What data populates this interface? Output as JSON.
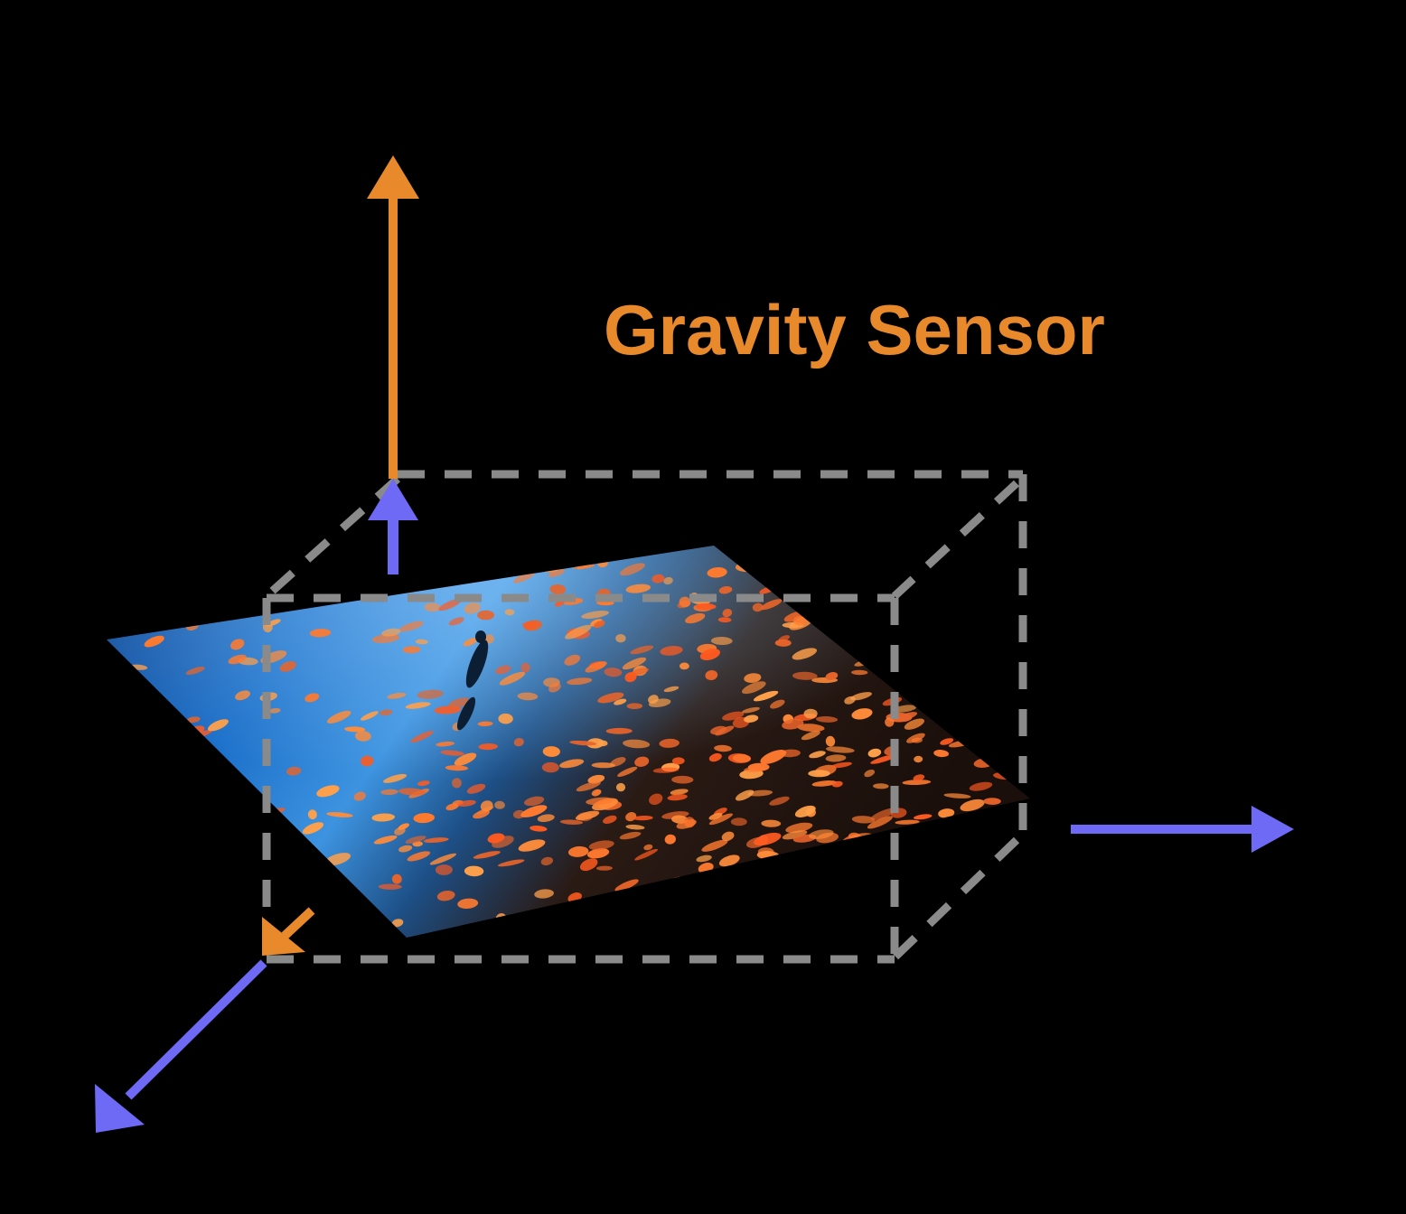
{
  "title": "Gravity Sensor",
  "colors": {
    "background": "#000000",
    "gravity_arrow": "#E8892C",
    "axis_arrow": "#6F6AF5",
    "dashed_box": "#8A8A8A",
    "title": "#E8892C"
  },
  "icons": {
    "up_gravity": "arrow-up-icon",
    "up_axis": "arrow-up-icon",
    "right_axis": "arrow-right-icon",
    "diagonal_axis": "arrow-down-left-icon",
    "diagonal_gravity": "arrow-down-left-icon"
  }
}
